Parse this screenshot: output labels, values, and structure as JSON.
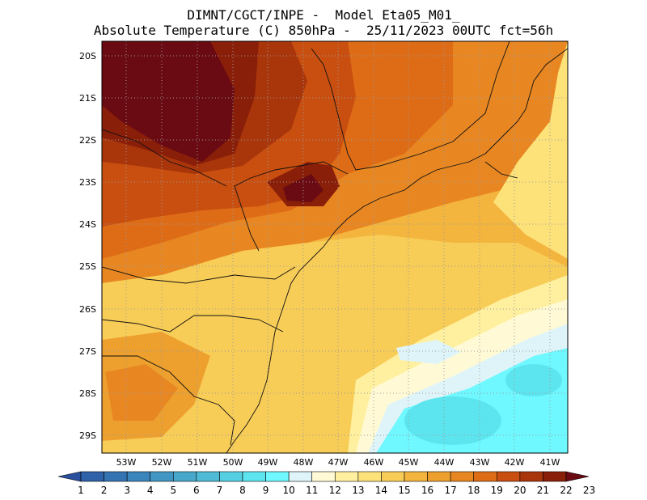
{
  "header": {
    "line1": "DIMNT/CGCT/INPE -  Model Eta05_M01_",
    "line2": "Absolute Temperature (C) 850hPa -  25/11/2023 00UTC fct=56h"
  },
  "axes": {
    "lat_labels": [
      "20S",
      "21S",
      "22S",
      "23S",
      "24S",
      "25S",
      "26S",
      "27S",
      "28S",
      "29S"
    ],
    "lon_labels": [
      "53W",
      "52W",
      "51W",
      "50W",
      "49W",
      "48W",
      "47W",
      "46W",
      "45W",
      "44W",
      "43W",
      "42W",
      "41W"
    ]
  },
  "colorbar": {
    "labels": [
      "1",
      "2",
      "3",
      "4",
      "5",
      "6",
      "7",
      "8",
      "9",
      "10",
      "11",
      "12",
      "13",
      "14",
      "15",
      "16",
      "17",
      "18",
      "19",
      "20",
      "21",
      "22",
      "23"
    ],
    "colors": [
      "#2a4f9c",
      "#2f62a8",
      "#3474b2",
      "#3a85bb",
      "#4196c4",
      "#48a8cc",
      "#4fbbd6",
      "#55cfe2",
      "#5ce5ef",
      "#6ff8ff",
      "#dff4f8",
      "#fffad5",
      "#fff0a0",
      "#fde27a",
      "#f8cd57",
      "#f3b53e",
      "#eda02e",
      "#e88722",
      "#de6c17",
      "#c94f10",
      "#a9350b",
      "#8a1f09",
      "#6a0a12"
    ]
  }
}
